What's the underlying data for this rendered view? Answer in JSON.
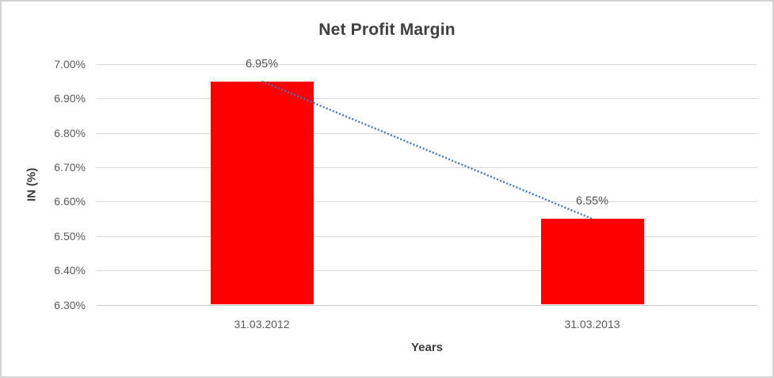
{
  "chart_data": {
    "type": "bar",
    "title": "Net Profit Margin",
    "xlabel": "Years",
    "ylabel": "IN (%)",
    "categories": [
      "31.03.2012",
      "31.03.2013"
    ],
    "values": [
      6.95,
      6.55
    ],
    "data_labels": [
      "6.95%",
      "6.55%"
    ],
    "ylim": [
      6.3,
      7.0
    ],
    "yticks": [
      {
        "value": 7.0,
        "label": "7.00%"
      },
      {
        "value": 6.9,
        "label": "6.90%"
      },
      {
        "value": 6.8,
        "label": "6.80%"
      },
      {
        "value": 6.7,
        "label": "6.70%"
      },
      {
        "value": 6.6,
        "label": "6.60%"
      },
      {
        "value": 6.5,
        "label": "6.50%"
      },
      {
        "value": 6.4,
        "label": "6.40%"
      },
      {
        "value": 6.3,
        "label": "6.30%"
      }
    ],
    "bar_color": "#FF0000",
    "gridline_color": "#D9D9D9",
    "legend": "none",
    "trendline": {
      "type": "linear",
      "style": "dotted",
      "color": "#4472C4",
      "points": [
        6.95,
        6.55
      ]
    }
  }
}
